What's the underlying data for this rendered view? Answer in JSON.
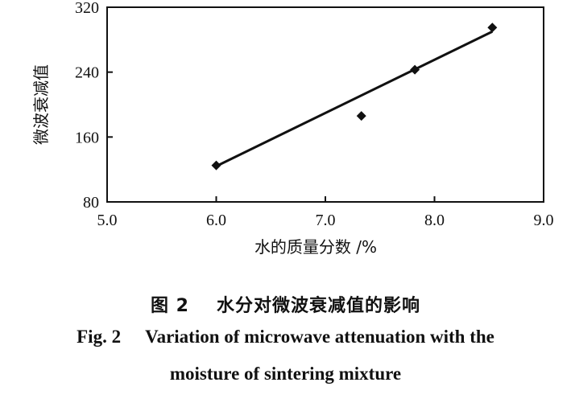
{
  "chart_data": {
    "type": "scatter",
    "xlabel": "水的质量分数 /%",
    "ylabel": "微波衰减值",
    "xlim": [
      5.0,
      9.0
    ],
    "ylim": [
      80,
      320
    ],
    "x_ticks": [
      "5.0",
      "6.0",
      "7.0",
      "8.0",
      "9.0"
    ],
    "y_ticks": [
      "80",
      "160",
      "240",
      "320"
    ],
    "grid": false,
    "points": [
      {
        "x": 6.0,
        "y": 125
      },
      {
        "x": 7.33,
        "y": 186
      },
      {
        "x": 7.82,
        "y": 243
      },
      {
        "x": 8.53,
        "y": 295
      }
    ],
    "fit_line": {
      "x": [
        6.0,
        8.53
      ],
      "y": [
        124,
        290
      ]
    }
  },
  "caption": {
    "cn_label": "图 2",
    "cn_title": "水分对微波衰减值的影响",
    "en_label": "Fig. 2",
    "en_title_line1": "Variation of microwave attenuation with the",
    "en_title_line2": "moisture of sintering mixture"
  }
}
